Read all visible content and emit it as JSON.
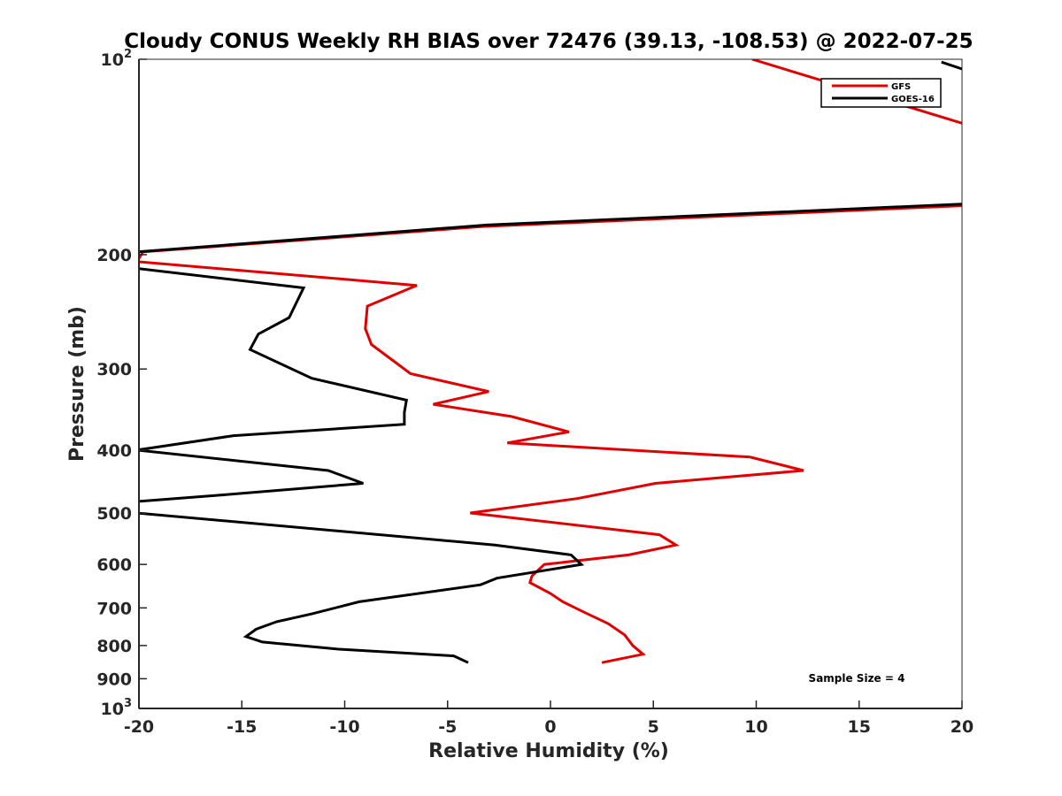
{
  "chart_data": {
    "type": "line",
    "title": "Cloudy CONUS Weekly RH BIAS over 72476 (39.13, -108.53) @ 2022-07-25",
    "xlabel": "Relative Humidity (%)",
    "ylabel": "Pressure (mb)",
    "xlim": [
      -20,
      20
    ],
    "ylim": [
      100,
      1000
    ],
    "y_scale": "log",
    "y_reversed": true,
    "grid": false,
    "legend_position": "top-right",
    "x_ticks": [
      "-20",
      "-15",
      "-10",
      "-5",
      "0",
      "5",
      "10",
      "15",
      "20"
    ],
    "y_ticks": [
      {
        "value": 100,
        "label": "10",
        "sup": "2"
      },
      {
        "value": 200,
        "label": "200",
        "sup": ""
      },
      {
        "value": 300,
        "label": "300",
        "sup": ""
      },
      {
        "value": 400,
        "label": "400",
        "sup": ""
      },
      {
        "value": 500,
        "label": "500",
        "sup": ""
      },
      {
        "value": 600,
        "label": "600",
        "sup": ""
      },
      {
        "value": 700,
        "label": "700",
        "sup": ""
      },
      {
        "value": 800,
        "label": "800",
        "sup": ""
      },
      {
        "value": 900,
        "label": "900",
        "sup": ""
      },
      {
        "value": 1000,
        "label": "10",
        "sup": "3"
      }
    ],
    "annotation": "Sample Size = 4",
    "series": [
      {
        "name": "GFS",
        "color": "#e00000",
        "points": [
          [
            2.5,
            850
          ],
          [
            4.5,
            825
          ],
          [
            4.0,
            800
          ],
          [
            3.6,
            770
          ],
          [
            2.8,
            740
          ],
          [
            1.6,
            710
          ],
          [
            0.6,
            685
          ],
          [
            0.0,
            665
          ],
          [
            -1.0,
            640
          ],
          [
            -0.9,
            625
          ],
          [
            -0.3,
            600
          ],
          [
            3.8,
            580
          ],
          [
            6.1,
            560
          ],
          [
            5.3,
            540
          ],
          [
            -3.9,
            500
          ],
          [
            1.3,
            475
          ],
          [
            5.1,
            450
          ],
          [
            12.3,
            430
          ],
          [
            9.7,
            410
          ],
          [
            -2.1,
            390
          ],
          [
            0.9,
            375
          ],
          [
            -1.9,
            355
          ],
          [
            -5.7,
            340
          ],
          [
            -3.0,
            325
          ],
          [
            -6.8,
            305
          ],
          [
            -8.7,
            275
          ],
          [
            -9.0,
            260
          ],
          [
            -8.9,
            240
          ],
          [
            -6.5,
            223
          ],
          [
            -20.1,
            205
          ],
          [
            -19.8,
            198
          ],
          [
            -3.3,
            181
          ],
          [
            20.2,
            168
          ]
        ]
      },
      {
        "name": "GOES-16",
        "color": "#000000",
        "points": [
          [
            -4.0,
            850
          ],
          [
            -4.7,
            830
          ],
          [
            -10.4,
            810
          ],
          [
            -14.0,
            790
          ],
          [
            -14.8,
            775
          ],
          [
            -14.3,
            755
          ],
          [
            -13.3,
            735
          ],
          [
            -11.6,
            715
          ],
          [
            -9.3,
            685
          ],
          [
            -3.4,
            645
          ],
          [
            -2.6,
            630
          ],
          [
            1.5,
            600
          ],
          [
            1.0,
            580
          ],
          [
            -2.7,
            560
          ],
          [
            -20.1,
            500
          ],
          [
            -20.1,
            490
          ],
          [
            -20.1,
            480
          ],
          [
            -16.3,
            470
          ],
          [
            -9.1,
            450
          ],
          [
            -10.8,
            430
          ],
          [
            -20.1,
            400
          ],
          [
            -15.4,
            380
          ],
          [
            -7.1,
            365
          ],
          [
            -7.1,
            350
          ],
          [
            -7.0,
            335
          ],
          [
            -11.6,
            310
          ],
          [
            -14.6,
            280
          ],
          [
            -14.2,
            265
          ],
          [
            -12.7,
            250
          ],
          [
            -12.0,
            225
          ],
          [
            -20.1,
            210
          ],
          [
            -20.1,
            198
          ],
          [
            -3.1,
            180
          ],
          [
            20.2,
            167
          ]
        ],
        "upper_points": [
          [
            19.0,
            101
          ],
          [
            20.2,
            104
          ]
        ]
      }
    ]
  }
}
